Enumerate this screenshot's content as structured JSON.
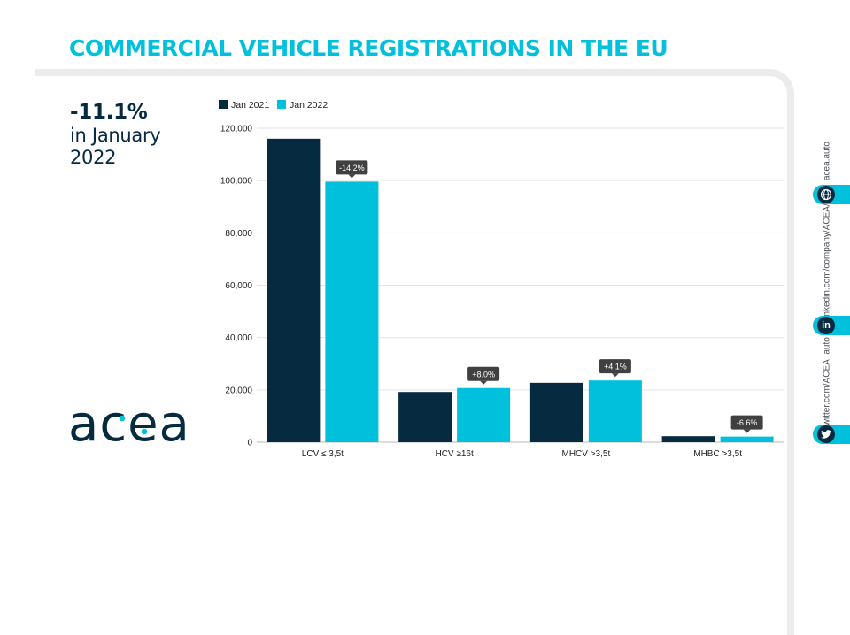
{
  "page": {
    "title": "COMMERCIAL VEHICLE REGISTRATIONS IN THE EU",
    "kpi_value": "-11.1%",
    "kpi_caption": "in January 2022",
    "logo_text": "acea"
  },
  "social": {
    "web": "acea.auto",
    "linkedin": "linkedin.com/company/ACEA/",
    "twitter": "twitter.com/ACEA_auto",
    "icons": [
      "globe-icon",
      "linkedin-icon",
      "twitter-icon"
    ]
  },
  "colors": {
    "accent": "#00c0dc",
    "navy": "#062a3f",
    "frame": "#ececec",
    "label_bg": "#404040"
  },
  "chart_data": {
    "type": "bar",
    "categories": [
      "LCV ≤ 3,5t",
      "HCV ≥16t",
      "MHCV >3,5t",
      "MHBC >3,5t"
    ],
    "series": [
      {
        "name": "Jan 2021",
        "color": "#062a3f",
        "values": [
          116000,
          19200,
          22700,
          2300
        ]
      },
      {
        "name": "Jan 2022",
        "color": "#00c0dc",
        "values": [
          99600,
          20700,
          23600,
          2150
        ]
      }
    ],
    "change_labels": [
      "-14.2%",
      "+8.0%",
      "+4.1%",
      "-6.6%"
    ],
    "yticks": [
      "0",
      "20,000",
      "40,000",
      "60,000",
      "80,000",
      "100,000",
      "120,000"
    ],
    "ylim": [
      0,
      120000
    ],
    "grid": true,
    "legend_position": "top-left"
  }
}
